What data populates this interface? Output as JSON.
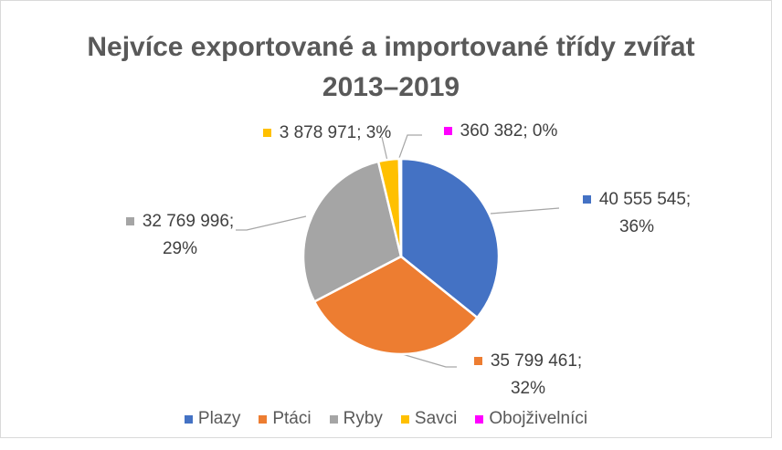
{
  "chart_data": {
    "type": "pie",
    "title": "Nejvíce exportované a importované třídy zvířat 2013–2019",
    "categories": [
      "Plazy",
      "Ptáci",
      "Ryby",
      "Savci",
      "Obojživelníci"
    ],
    "values": [
      40555545,
      35799461,
      32769996,
      3878971,
      360382
    ],
    "value_labels": [
      "40 555 545; 36%",
      "35 799 461; 32%",
      "32 769 996; 29%",
      "3 878 971; 3%",
      "360 382; 0%"
    ],
    "colors": [
      "#4472c4",
      "#ed7d31",
      "#a5a5a5",
      "#ffc000",
      "#ff00ff"
    ],
    "legend": "bottom"
  }
}
